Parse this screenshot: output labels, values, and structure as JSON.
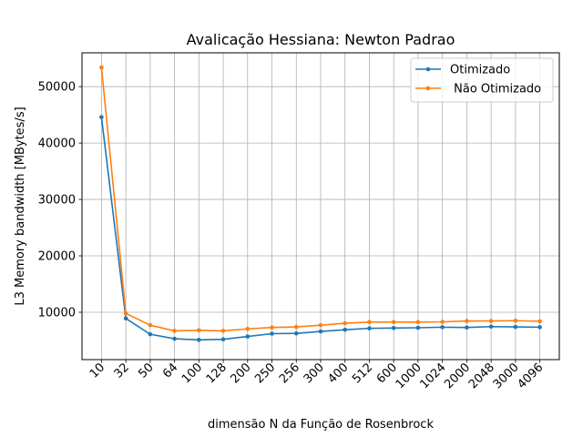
{
  "chart_data": {
    "type": "line",
    "title": "Avalicação Hessiana:  Newton Padrao",
    "xlabel": "dimensão N da Função de Rosenbrock",
    "ylabel": "L3 Memory bandwidth [MBytes/s]",
    "categories": [
      "10",
      "32",
      "50",
      "64",
      "100",
      "128",
      "200",
      "250",
      "256",
      "300",
      "400",
      "512",
      "600",
      "1000",
      "1024",
      "2000",
      "2048",
      "3000",
      "4096"
    ],
    "ylim": [
      1600,
      56000
    ],
    "yticks": [
      10000,
      20000,
      30000,
      40000,
      50000
    ],
    "ytick_labels": [
      "10000",
      "20000",
      "30000",
      "40000",
      "50000"
    ],
    "grid": true,
    "legend_position": "top-right",
    "series": [
      {
        "name": "Otimizado",
        "color": "#1f77b4",
        "values": [
          44600,
          8900,
          6100,
          5300,
          5100,
          5200,
          5700,
          6200,
          6250,
          6600,
          6900,
          7150,
          7200,
          7250,
          7350,
          7300,
          7450,
          7400,
          7350
        ]
      },
      {
        "name": " Não Otimizado",
        "color": "#ff7f0e",
        "values": [
          53400,
          9800,
          7700,
          6700,
          6800,
          6700,
          7050,
          7300,
          7400,
          7700,
          8050,
          8250,
          8250,
          8250,
          8300,
          8450,
          8450,
          8500,
          8400
        ]
      }
    ]
  }
}
